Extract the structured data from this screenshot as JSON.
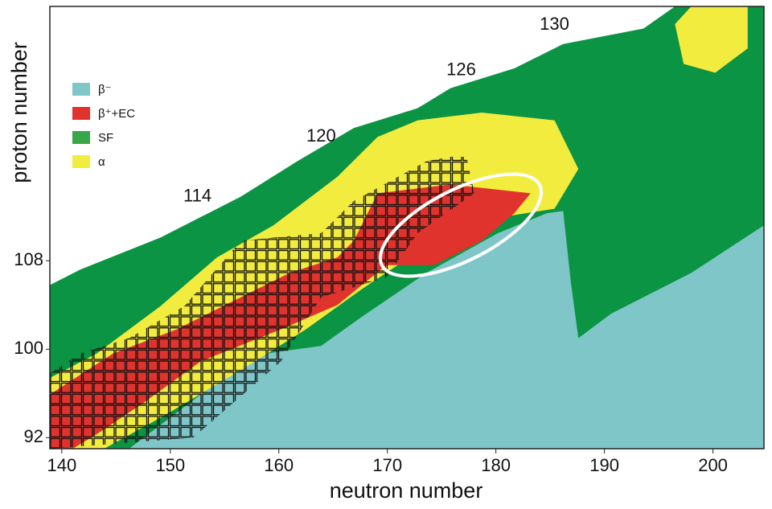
{
  "chart_data": {
    "type": "region_map",
    "x_label": "neutron number",
    "y_label": "proton number",
    "xlim": [
      138.9,
      204.7
    ],
    "ylim": [
      91,
      131
    ],
    "xticks": [
      140,
      150,
      160,
      170,
      180,
      190,
      200
    ],
    "yticks": [
      92,
      100,
      108
    ],
    "legend": "upper left",
    "series": [
      {
        "name": "SF",
        "color": "#0b9444",
        "legend_color": "#3aa64a",
        "polygons": [
          [
            [
              138.9,
              105.8
            ],
            [
              141.7,
              107.2
            ],
            [
              149.1,
              110.1
            ],
            [
              156.5,
              113.8
            ],
            [
              161.7,
              117.0
            ],
            [
              166.9,
              120.0
            ],
            [
              172.8,
              121.8
            ],
            [
              175.8,
              123.6
            ],
            [
              181.7,
              125.4
            ],
            [
              186.2,
              127.6
            ],
            [
              193.6,
              129.0
            ],
            [
              196.5,
              131.0
            ],
            [
              204.7,
              131.0
            ],
            [
              204.7,
              91.0
            ],
            [
              138.9,
              91.0
            ]
          ]
        ]
      },
      {
        "name": "β⁻",
        "color": "#7fc6c8",
        "polygons": [
          [
            [
              146.2,
              91.0
            ],
            [
              152.8,
              95.9
            ],
            [
              158.8,
              99.6
            ],
            [
              163.9,
              100.3
            ],
            [
              167.6,
              102.9
            ],
            [
              173.6,
              106.9
            ],
            [
              180.2,
              110.5
            ],
            [
              184.7,
              112.3
            ],
            [
              186.2,
              112.5
            ],
            [
              186.9,
              106.1
            ],
            [
              187.6,
              101.0
            ],
            [
              190.6,
              103.2
            ],
            [
              198.0,
              106.9
            ],
            [
              204.7,
              111.2
            ],
            [
              204.7,
              91.0
            ]
          ]
        ]
      },
      {
        "name": "α",
        "color": "#f2ec3f",
        "polygons": [
          [
            [
              138.9,
              97.4
            ],
            [
              143.2,
              99.6
            ],
            [
              149.1,
              103.9
            ],
            [
              154.3,
              108.3
            ],
            [
              159.5,
              111.2
            ],
            [
              165.4,
              115.6
            ],
            [
              169.1,
              119.2
            ],
            [
              172.8,
              120.7
            ],
            [
              178.7,
              121.4
            ],
            [
              185.4,
              120.7
            ],
            [
              187.6,
              116.3
            ],
            [
              185.4,
              112.7
            ],
            [
              180.2,
              111.9
            ],
            [
              174.3,
              109.8
            ],
            [
              167.6,
              105.4
            ],
            [
              162.5,
              101.8
            ],
            [
              156.5,
              98.1
            ],
            [
              149.1,
              93.8
            ],
            [
              143.9,
              91.0
            ],
            [
              138.9,
              91.0
            ]
          ],
          [
            [
              196.5,
              129.4
            ],
            [
              198.0,
              131.0
            ],
            [
              203.2,
              131.0
            ],
            [
              203.2,
              127.2
            ],
            [
              200.2,
              125.0
            ],
            [
              197.3,
              125.8
            ]
          ]
        ]
      },
      {
        "name": "β⁺+EC",
        "color": "#e0332d",
        "polygons": [
          [
            [
              138.9,
              95.9
            ],
            [
              144.7,
              99.6
            ],
            [
              150.6,
              101.8
            ],
            [
              156.5,
              104.7
            ],
            [
              161.0,
              106.9
            ],
            [
              165.4,
              108.3
            ],
            [
              166.9,
              109.8
            ],
            [
              169.1,
              114.1
            ],
            [
              175.8,
              114.9
            ],
            [
              183.2,
              114.1
            ],
            [
              181.7,
              112.3
            ],
            [
              178.7,
              109.8
            ],
            [
              174.3,
              107.6
            ],
            [
              169.9,
              107.6
            ],
            [
              165.4,
              104.0
            ],
            [
              160.2,
              101.8
            ],
            [
              152.8,
              98.9
            ],
            [
              147.6,
              95.2
            ],
            [
              143.2,
              92.3
            ],
            [
              141.0,
              91.0
            ],
            [
              138.9,
              91.0
            ]
          ]
        ]
      }
    ],
    "known_nuclides": [
      [
        138.9,
        97.8
      ],
      [
        141.7,
        99.6
      ],
      [
        146.2,
        101.0
      ],
      [
        151.3,
        103.9
      ],
      [
        156.5,
        109.8
      ],
      [
        163.9,
        110.5
      ],
      [
        166.9,
        113.4
      ],
      [
        173.6,
        117.0
      ],
      [
        175.8,
        117.4
      ],
      [
        177.3,
        117.4
      ],
      [
        178.0,
        114.1
      ],
      [
        172.8,
        110.5
      ],
      [
        169.9,
        106.5
      ],
      [
        163.9,
        104.7
      ],
      [
        160.2,
        98.9
      ],
      [
        152.1,
        92.0
      ],
      [
        138.9,
        91.0
      ]
    ],
    "annotations": [
      {
        "text": "114",
        "x": 152.5,
        "y": 113.8
      },
      {
        "text": "120",
        "x": 163.9,
        "y": 119.2
      },
      {
        "text": "126",
        "x": 176.8,
        "y": 125.2
      },
      {
        "text": "130",
        "x": 185.4,
        "y": 129.3
      }
    ]
  }
}
